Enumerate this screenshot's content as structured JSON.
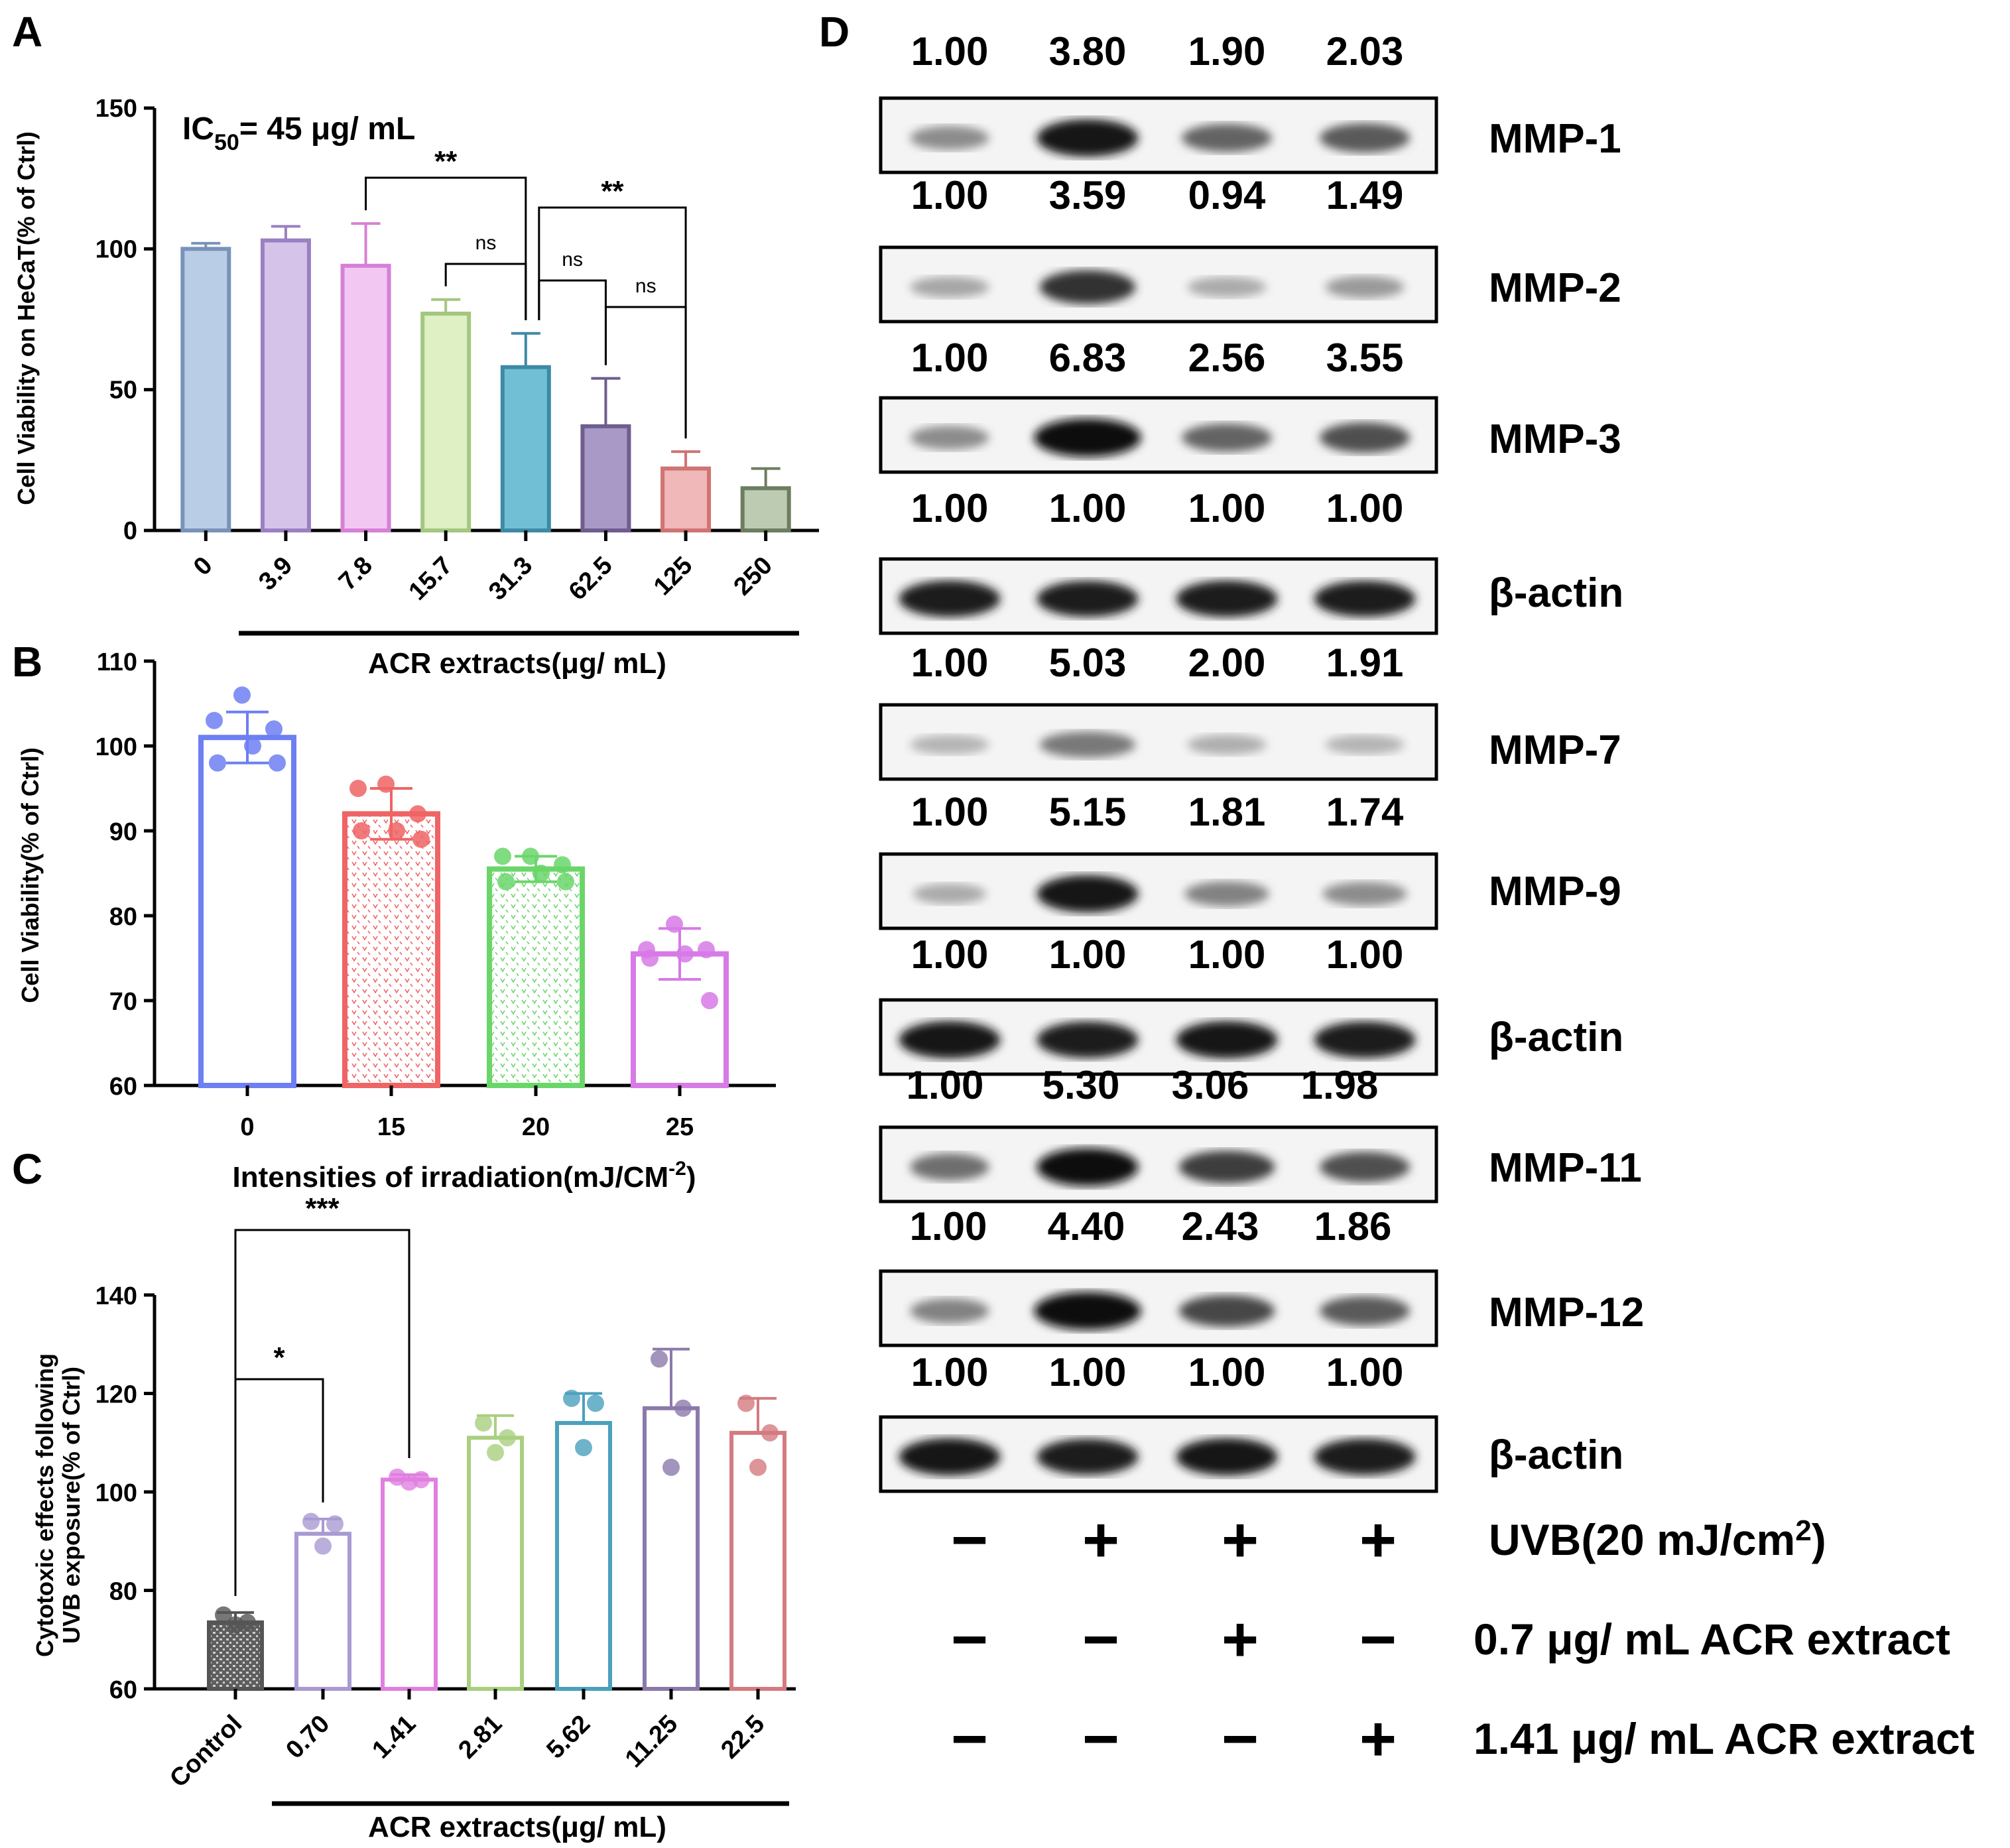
{
  "panels": {
    "a": "A",
    "b": "B",
    "c": "C",
    "d": "D"
  },
  "chart_data": [
    {
      "id": "A",
      "type": "bar",
      "ylabel": "Cell Viability on HeCaT(% of Ctrl)",
      "xlabel": "ACR extracts(μg/ mL)",
      "ylim": [
        0,
        150
      ],
      "yticks": [
        "0",
        "50",
        "100",
        "150"
      ],
      "categories": [
        "0",
        "3.9",
        "7.8",
        "15.7",
        "31.3",
        "62.5",
        "125",
        "250"
      ],
      "values": [
        100,
        103,
        94,
        77,
        58,
        37,
        22,
        15
      ],
      "errors": [
        2,
        5,
        15,
        5,
        12,
        17,
        6,
        7
      ],
      "fill": [
        "#b9cde6",
        "#d5c3ea",
        "#f2c8f2",
        "#dff0c5",
        "#71bfd5",
        "#a999c6",
        "#f0b8b8",
        "#bccbb2"
      ],
      "stroke": [
        "#7993b8",
        "#9b80c2",
        "#d681d6",
        "#a3c77f",
        "#3e8aa6",
        "#6e5d8f",
        "#d07373",
        "#6c7d60"
      ],
      "annotation_ic50": {
        "main": "IC",
        "sub": "50",
        "rest": "= 45 μg/ mL"
      },
      "comparisons": [
        {
          "from": 2,
          "to": 4,
          "label": "**"
        },
        {
          "from": 3,
          "to": 4,
          "label": "ns"
        },
        {
          "from": 4,
          "to": 6,
          "label": "**"
        },
        {
          "from": 4,
          "to": 5,
          "label": "ns"
        },
        {
          "from": 5,
          "to": 6,
          "label": "ns"
        }
      ]
    },
    {
      "id": "B",
      "type": "bar",
      "ylabel": "Cell Viability(% of Ctrl)",
      "xlabel_main": "Intensities of irradiation(mJ/CM",
      "xlabel_sup": "-2",
      "xlabel_end": ")",
      "ylim": [
        60,
        110
      ],
      "yticks": [
        "60",
        "70",
        "80",
        "90",
        "100",
        "110"
      ],
      "categories": [
        "0",
        "15",
        "20",
        "25"
      ],
      "values": [
        101,
        92,
        85.5,
        75.5
      ],
      "errors": [
        3,
        3,
        1.5,
        3
      ],
      "points": [
        [
          106,
          103,
          102,
          100,
          98,
          98
        ],
        [
          95.5,
          95,
          92,
          90,
          90,
          89
        ],
        [
          87,
          87,
          86,
          85,
          84,
          84
        ],
        [
          79,
          76,
          76,
          75.5,
          75,
          70
        ]
      ],
      "colors": [
        "#6d7ff2",
        "#ef6464",
        "#6ad66a",
        "#d77ae6"
      ]
    },
    {
      "id": "C",
      "type": "bar",
      "ylabel_line1": "Cytotoxic effects following",
      "ylabel_line2": "UVB exposure(% of Ctrl)",
      "xlabel": "ACR extracts(μg/ mL)",
      "ylim": [
        60,
        140
      ],
      "yticks": [
        "60",
        "80",
        "100",
        "120",
        "140"
      ],
      "categories": [
        "Control",
        "0.70",
        "1.41",
        "2.81",
        "5.62",
        "11.25",
        "22.5"
      ],
      "values": [
        73.5,
        91.5,
        102.5,
        111,
        114,
        117,
        112
      ],
      "errors": [
        2,
        3,
        1,
        4.5,
        6,
        12,
        7
      ],
      "points": [
        [
          75,
          73.5,
          73
        ],
        [
          94,
          93.5,
          89
        ],
        [
          103,
          102.5,
          102
        ],
        [
          114,
          111,
          108
        ],
        [
          119,
          118,
          109
        ],
        [
          127,
          117,
          105
        ],
        [
          118,
          112,
          105
        ]
      ],
      "colors": [
        "#555555",
        "#a99ad2",
        "#e07fe0",
        "#a9cf80",
        "#4ba0bd",
        "#8b79ab",
        "#d47a80"
      ],
      "comparisons": [
        {
          "from": 0,
          "to": 1,
          "label": "*"
        },
        {
          "from": 0,
          "to": 2,
          "label": "***"
        }
      ]
    },
    {
      "id": "D",
      "type": "table",
      "rows": [
        {
          "label": "MMP-1",
          "values": [
            "1.00",
            "3.80",
            "1.90",
            "2.03"
          ],
          "intensity": [
            0.35,
            0.95,
            0.55,
            0.6
          ],
          "width": [
            0.7,
            0.9,
            0.8,
            0.8
          ]
        },
        {
          "label": "MMP-2",
          "values": [
            "1.00",
            "3.59",
            "0.94",
            "1.49"
          ],
          "intensity": [
            0.22,
            0.8,
            0.2,
            0.28
          ],
          "width": [
            0.7,
            0.85,
            0.7,
            0.7
          ]
        },
        {
          "label": "MMP-3",
          "values": [
            "1.00",
            "6.83",
            "2.56",
            "3.55"
          ],
          "intensity": [
            0.35,
            1.0,
            0.55,
            0.65
          ],
          "width": [
            0.7,
            0.95,
            0.8,
            0.8
          ]
        },
        {
          "label": "β-actin",
          "values": [
            "1.00",
            "1.00",
            "1.00",
            "1.00"
          ],
          "intensity": [
            0.92,
            0.9,
            0.92,
            0.9
          ],
          "width": [
            0.9,
            0.9,
            0.9,
            0.9
          ]
        },
        {
          "label": "MMP-7",
          "values": [
            "1.00",
            "5.03",
            "2.00",
            "1.91"
          ],
          "intensity": [
            0.15,
            0.45,
            0.18,
            0.15
          ],
          "width": [
            0.7,
            0.85,
            0.7,
            0.7
          ]
        },
        {
          "label": "MMP-9",
          "values": [
            "1.00",
            "5.15",
            "1.81",
            "1.74"
          ],
          "intensity": [
            0.2,
            0.95,
            0.4,
            0.35
          ],
          "width": [
            0.65,
            0.9,
            0.75,
            0.75
          ]
        },
        {
          "label": "β-actin",
          "values": [
            "1.00",
            "1.00",
            "1.00",
            "1.00"
          ],
          "intensity": [
            0.95,
            0.92,
            0.95,
            0.92
          ],
          "width": [
            0.9,
            0.9,
            0.9,
            0.9
          ]
        },
        {
          "label": "MMP-11",
          "values": [
            "1.00",
            "5.30",
            "3.06",
            "1.98"
          ],
          "intensity": [
            0.5,
            0.98,
            0.75,
            0.65
          ],
          "width": [
            0.7,
            0.9,
            0.85,
            0.8
          ]
        },
        {
          "label": "MMP-12",
          "values": [
            "1.00",
            "4.40",
            "2.43",
            "1.86"
          ],
          "intensity": [
            0.4,
            0.98,
            0.7,
            0.6
          ],
          "width": [
            0.7,
            0.95,
            0.85,
            0.8
          ]
        },
        {
          "label": "β-actin",
          "values": [
            "1.00",
            "1.00",
            "1.00",
            "1.00"
          ],
          "intensity": [
            0.95,
            0.9,
            0.95,
            0.92
          ],
          "width": [
            0.9,
            0.9,
            0.9,
            0.9
          ]
        }
      ],
      "conditions": [
        {
          "label": "UVB(20 mJ/cm",
          "sup": "2",
          "end": ")",
          "signs": [
            "−",
            "+",
            "+",
            "+"
          ]
        },
        {
          "label": "0.7 μg/ mL ACR extract",
          "signs": [
            "−",
            "−",
            "+",
            "−"
          ]
        },
        {
          "label": "1.41 μg/ mL ACR extract",
          "signs": [
            "−",
            "−",
            "−",
            "+"
          ]
        }
      ]
    }
  ]
}
